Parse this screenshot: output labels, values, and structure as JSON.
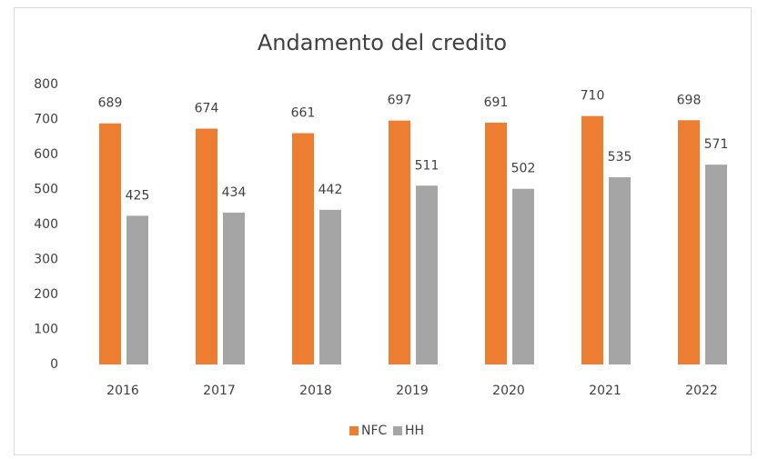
{
  "chart_data": {
    "type": "bar",
    "title": "Andamento del credito",
    "categories": [
      "2016",
      "2017",
      "2018",
      "2019",
      "2020",
      "2021",
      "2022"
    ],
    "series": [
      {
        "name": "NFC",
        "color": "#ED7D31",
        "values": [
          689,
          674,
          661,
          697,
          691,
          710,
          698
        ]
      },
      {
        "name": "HH",
        "color": "#A5A5A5",
        "values": [
          425,
          434,
          442,
          511,
          502,
          535,
          571
        ]
      }
    ],
    "ylim": [
      0,
      800
    ],
    "yticks": [
      0,
      100,
      200,
      300,
      400,
      500,
      600,
      700,
      800
    ],
    "grid": false,
    "legend": "bottom"
  }
}
